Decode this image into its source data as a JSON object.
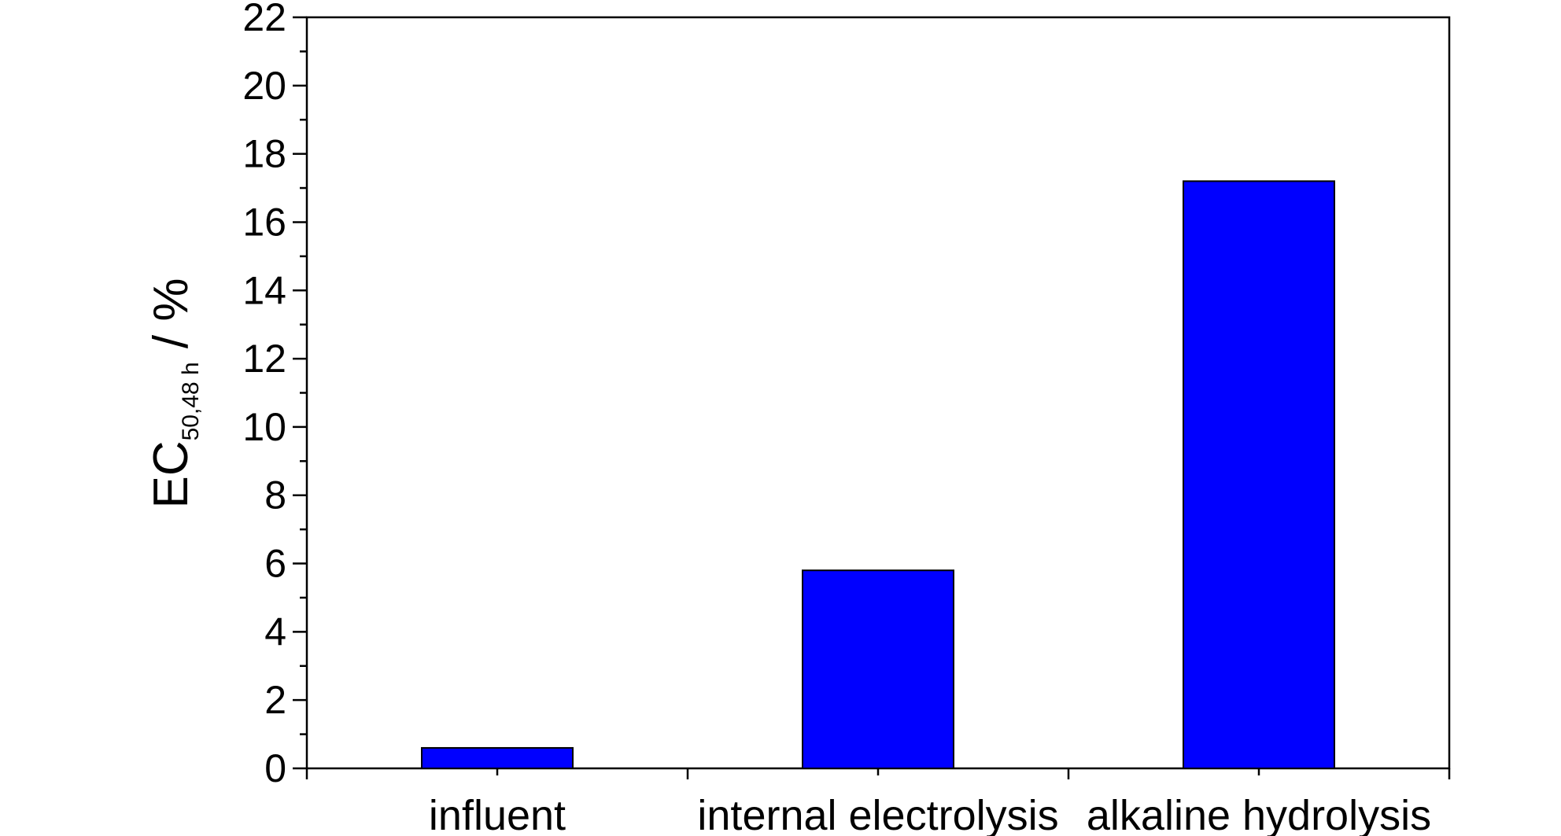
{
  "chart_data": {
    "type": "bar",
    "title": "",
    "xlabel": "",
    "ylabel": {
      "main": "EC",
      "subscript": "50,48 h",
      "suffix": " / %"
    },
    "categories": [
      "influent",
      "internal electrolysis",
      "alkaline hydrolysis"
    ],
    "values": [
      0.6,
      5.8,
      17.2
    ],
    "ylim": [
      0,
      22
    ],
    "y_major_ticks": [
      0,
      2,
      4,
      6,
      8,
      10,
      12,
      14,
      16,
      18,
      20,
      22
    ],
    "y_tick_labels": [
      "0",
      "2",
      "4",
      "6",
      "8",
      "10",
      "12",
      "14",
      "16",
      "18",
      "20",
      "22"
    ],
    "y_minor_step": 1,
    "grid": false,
    "legend": "none",
    "bar_color": "#0000ff",
    "bar_edge_color": "#000000"
  }
}
